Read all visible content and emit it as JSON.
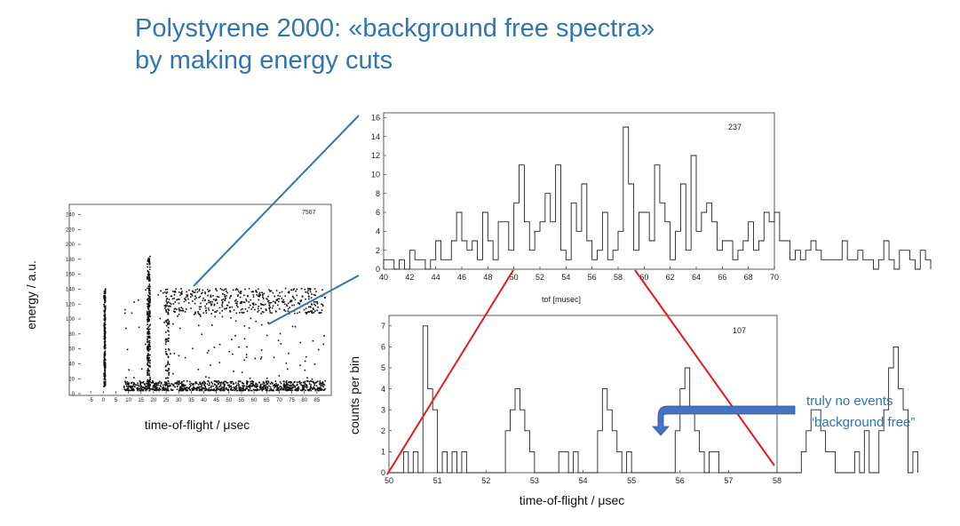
{
  "title": {
    "line1": "Polystyrene 2000: «background free spectra»",
    "line2": "by making energy cuts"
  },
  "annotation": {
    "line1": "truly no events",
    "line2": "“background free”",
    "color": "#2e75b6",
    "arrow_color": "#4472c4"
  },
  "colors": {
    "title": "#2e75b6",
    "zoom_lines": "#2e75b6",
    "cut_lines": "#e31a1c"
  },
  "chart_data": [
    {
      "type": "scatter",
      "panel": "left",
      "corner_label": "7567",
      "xlabel": "time-of-flight / μsec",
      "ylabel": "energy / a.u.",
      "xlim": [
        -10,
        90
      ],
      "ylim": [
        0,
        250
      ],
      "x_ticks": [
        -5,
        0,
        5,
        10,
        15,
        20,
        25,
        30,
        35,
        40,
        45,
        50,
        55,
        60,
        65,
        70,
        75,
        80,
        85
      ],
      "y_ticks": [
        0,
        20,
        40,
        60,
        80,
        100,
        120,
        140,
        160,
        180,
        200,
        220,
        240
      ],
      "clusters": [
        {
          "name": "prompt-line",
          "x": [
            0,
            0.6
          ],
          "y": [
            10,
            142
          ],
          "n": 220
        },
        {
          "name": "line-18",
          "x": [
            17.2,
            18.4
          ],
          "y": [
            10,
            185
          ],
          "n": 260
        },
        {
          "name": "line-25",
          "x": [
            24.5,
            26
          ],
          "y": [
            10,
            130
          ],
          "n": 80
        },
        {
          "name": "low-energy-band",
          "x": [
            8,
            88
          ],
          "y": [
            5,
            18
          ],
          "n": 900
        },
        {
          "name": "high-energy-band",
          "x": [
            24,
            88
          ],
          "y": [
            108,
            142
          ],
          "n": 420
        },
        {
          "name": "scattered",
          "x": [
            8,
            88
          ],
          "y": [
            20,
            140
          ],
          "n": 130
        }
      ]
    },
    {
      "type": "bar",
      "style": "step",
      "panel": "top-right",
      "corner_label": "237",
      "xlabel": "tof [musec]",
      "xlim": [
        40,
        70
      ],
      "ylim": [
        0,
        16.5
      ],
      "x_ticks": [
        40,
        42,
        44,
        46,
        48,
        50,
        52,
        54,
        56,
        58,
        60,
        62,
        64,
        66,
        68,
        70
      ],
      "y_ticks": [
        0,
        2,
        4,
        6,
        8,
        10,
        12,
        14,
        16
      ],
      "bin_start": 40,
      "bin_width": 0.4,
      "values": [
        1,
        1,
        0,
        1,
        0,
        2,
        1,
        1,
        0,
        1,
        3,
        1,
        1,
        3,
        6,
        3,
        2,
        3,
        1,
        6,
        3,
        1,
        5,
        5,
        2,
        7,
        11,
        5,
        2,
        4,
        5,
        8,
        5,
        11,
        2,
        1,
        7,
        4,
        9,
        3,
        1,
        2,
        6,
        1,
        2,
        4,
        15,
        9,
        2,
        6,
        6,
        3,
        11,
        7,
        5,
        1,
        4,
        9,
        2,
        12,
        4,
        6,
        7,
        5,
        2,
        3,
        3,
        1,
        2,
        3,
        5,
        2,
        3,
        6,
        5,
        6,
        3,
        3,
        1,
        2,
        1,
        2,
        3,
        2,
        1,
        1,
        1,
        1,
        3,
        1,
        1,
        2,
        1,
        1,
        0,
        1,
        3,
        1,
        0,
        2,
        2,
        1,
        0,
        2,
        1
      ]
    },
    {
      "type": "bar",
      "style": "step",
      "panel": "bottom-right",
      "corner_label": "107",
      "xlabel": "time-of-flight / μsec",
      "ylabel": "counts per bin",
      "xlim": [
        50,
        58
      ],
      "ylim": [
        0,
        7.5
      ],
      "x_ticks": [
        50,
        51,
        52,
        53,
        54,
        55,
        56,
        57,
        58
      ],
      "y_ticks": [
        0,
        1,
        2,
        3,
        4,
        5,
        6,
        7
      ],
      "bin_start": 50,
      "bin_width": 0.1,
      "values": [
        0,
        0,
        0,
        1,
        0,
        1,
        0,
        7,
        4,
        3,
        0,
        1,
        0,
        1,
        0,
        1,
        0,
        0,
        0,
        0,
        0,
        0,
        0,
        0,
        2,
        3,
        4,
        3,
        2,
        1,
        0,
        0,
        0,
        0,
        0,
        1,
        1,
        0,
        1,
        0,
        0,
        0,
        0,
        2,
        4,
        3,
        2,
        1,
        0,
        1,
        0,
        0,
        0,
        0,
        0,
        0,
        0,
        0,
        0,
        2,
        4,
        5,
        3,
        2,
        1,
        0,
        1,
        1,
        0,
        0,
        0,
        0,
        0,
        0,
        0,
        0,
        0,
        0,
        0,
        0,
        0,
        0,
        0,
        0,
        0,
        1,
        2,
        3,
        3,
        2,
        1,
        1,
        0,
        0,
        0,
        0,
        1,
        0,
        2,
        0,
        0,
        2,
        3,
        5,
        6,
        4,
        3,
        0,
        1
      ]
    }
  ]
}
